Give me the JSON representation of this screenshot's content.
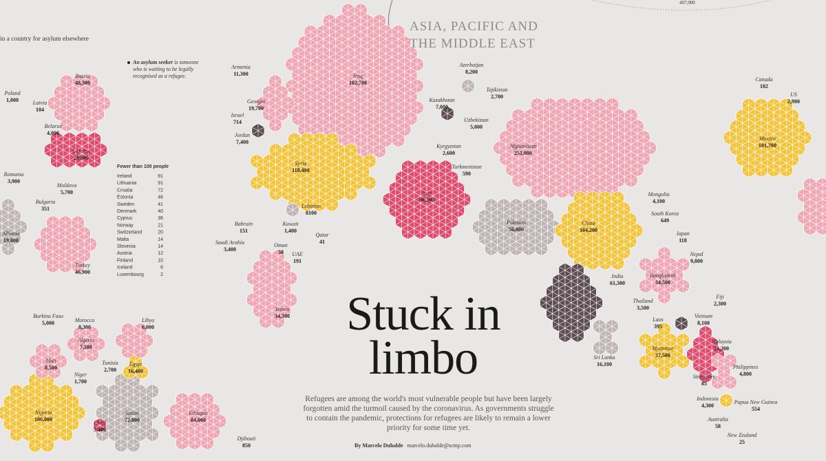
{
  "header": {
    "section": "ASIA, PACIFIC AND THE MIDDLE EAST",
    "title": "Stuck in limbo",
    "intro": "Refugees are among the world's most vulnerable people but have been largely forgotten amid the turmoil caused by the coronavirus. As governments struggle to contain the pandemic, protections for refugees are likely to remain a lower priority for some time yet.",
    "byline": "By Marcelo Duhalde",
    "email": "marcelo.duhalde@scmp.com"
  },
  "notes": {
    "fragment": "in a country for asylum elsewhere",
    "definition_bold": "An asylum seeker",
    "definition_rest": " is someone who is waiting to be legally recognised as a refugee.",
    "top_value": "407,900"
  },
  "table": {
    "heading": "Fewer than 100 people",
    "rows": [
      [
        "Ireland",
        91
      ],
      [
        "Lithuania",
        91
      ],
      [
        "Croatia",
        72
      ],
      [
        "Estonia",
        46
      ],
      [
        "Sweden",
        41
      ],
      [
        "Denmark",
        40
      ],
      [
        "Cyprus",
        36
      ],
      [
        "Norway",
        21
      ],
      [
        "Switzerland",
        20
      ],
      [
        "Malta",
        14
      ],
      [
        "Slovenia",
        14
      ],
      [
        "Austria",
        12
      ],
      [
        "Finland",
        10
      ],
      [
        "Iceland",
        6
      ],
      [
        "Luxembourg",
        2
      ]
    ]
  },
  "countries": [
    {
      "name": "Russia",
      "value": "48,300"
    },
    {
      "name": "Poland",
      "value": "1,000"
    },
    {
      "name": "Latvia",
      "value": "104"
    },
    {
      "name": "Belarus",
      "value": "4,000"
    },
    {
      "name": "Ukraine",
      "value": "28,000"
    },
    {
      "name": "Romania",
      "value": "3,900"
    },
    {
      "name": "Moldova",
      "value": "5,700"
    },
    {
      "name": "Bulgaria",
      "value": "351"
    },
    {
      "name": "Albania",
      "value": "19,000"
    },
    {
      "name": "Turkey",
      "value": "46,900"
    },
    {
      "name": "Burkina Faso",
      "value": "5,000"
    },
    {
      "name": "Morocco",
      "value": "8,300"
    },
    {
      "name": "Libya",
      "value": "6,000"
    },
    {
      "name": "Algeria",
      "value": "7,500"
    },
    {
      "name": "Mali",
      "value": "8,500"
    },
    {
      "name": "Tunisia",
      "value": "2,700"
    },
    {
      "name": "Egypt",
      "value": "16,400"
    },
    {
      "name": "Niger",
      "value": "1,700"
    },
    {
      "name": "Nigeria",
      "value": "106,000"
    },
    {
      "name": "Chad",
      "value": "5,400"
    },
    {
      "name": "Sudan",
      "value": "72,000"
    },
    {
      "name": "Ethiopia",
      "value": "84,000"
    },
    {
      "name": "Djibouti",
      "value": "850"
    },
    {
      "name": "Armenia",
      "value": "11,300"
    },
    {
      "name": "Georgia",
      "value": "19,700"
    },
    {
      "name": "Israel",
      "value": "714"
    },
    {
      "name": "Jordan",
      "value": "7,400"
    },
    {
      "name": "Iraq",
      "value": "102,700"
    },
    {
      "name": "Syria",
      "value": "118,400"
    },
    {
      "name": "Lebanon",
      "value": "8100"
    },
    {
      "name": "Bahrain",
      "value": "151"
    },
    {
      "name": "Kuwait",
      "value": "1,400"
    },
    {
      "name": "Qatar",
      "value": "41"
    },
    {
      "name": "Saudi Arabia",
      "value": "3,400"
    },
    {
      "name": "Oman",
      "value": "58"
    },
    {
      "name": "UAE",
      "value": "191"
    },
    {
      "name": "Yemen",
      "value": "34,300"
    },
    {
      "name": "Iran",
      "value": "86,300"
    },
    {
      "name": "Azerbaijan",
      "value": "8,200"
    },
    {
      "name": "Tajikistan",
      "value": "2,700"
    },
    {
      "name": "Kazakhstan",
      "value": "7,000"
    },
    {
      "name": "Uzbekistan",
      "value": "5,000"
    },
    {
      "name": "Kyrgyzstan",
      "value": "2,600"
    },
    {
      "name": "Turkmenistan",
      "value": "590"
    },
    {
      "name": "Afghanistan",
      "value": "251,000"
    },
    {
      "name": "Pakistan",
      "value": "56,000"
    },
    {
      "name": "Mongolia",
      "value": "4,100"
    },
    {
      "name": "South Korea",
      "value": "649"
    },
    {
      "name": "China",
      "value": "104,200"
    },
    {
      "name": "Japan",
      "value": "118"
    },
    {
      "name": "Nepal",
      "value": "9,800"
    },
    {
      "name": "India",
      "value": "61,300"
    },
    {
      "name": "Bangladesh",
      "value": "34,500"
    },
    {
      "name": "Thailand",
      "value": "3,500"
    },
    {
      "name": "Vietnam",
      "value": "8,100"
    },
    {
      "name": "Laos",
      "value": "395"
    },
    {
      "name": "Myanmar",
      "value": "37,500"
    },
    {
      "name": "Malaysia",
      "value": "21,300"
    },
    {
      "name": "Sri Lanka",
      "value": "16,100"
    },
    {
      "name": "Singapore",
      "value": "85"
    },
    {
      "name": "Philippines",
      "value": "4,800"
    },
    {
      "name": "Fiji",
      "value": "2,300"
    },
    {
      "name": "Indonesia",
      "value": "4,300"
    },
    {
      "name": "Papua New Guinea",
      "value": "554"
    },
    {
      "name": "Australia",
      "value": "58"
    },
    {
      "name": "New Zealand",
      "value": "25"
    },
    {
      "name": "Canada",
      "value": "102"
    },
    {
      "name": "US",
      "value": "2,900"
    },
    {
      "name": "Mexico",
      "value": "101,700"
    }
  ]
}
